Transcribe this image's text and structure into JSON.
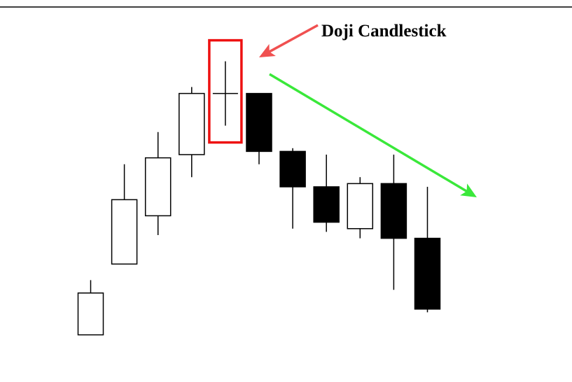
{
  "chart_data": {
    "type": "candlestick",
    "title": "",
    "xlabel": "",
    "ylabel": "",
    "grid": false,
    "ylim": [
      0,
      100
    ],
    "candles": [
      {
        "open": 9,
        "close": 22,
        "high": 26,
        "low": 9,
        "direction": "up"
      },
      {
        "open": 31,
        "close": 51,
        "high": 62,
        "low": 31,
        "direction": "up"
      },
      {
        "open": 46,
        "close": 64,
        "high": 72,
        "low": 40,
        "direction": "up"
      },
      {
        "open": 65,
        "close": 84,
        "high": 86,
        "low": 58,
        "direction": "up"
      },
      {
        "open": 84,
        "close": 84,
        "high": 94,
        "low": 74,
        "direction": "doji"
      },
      {
        "open": 84,
        "close": 66,
        "high": 84,
        "low": 62,
        "direction": "down"
      },
      {
        "open": 66,
        "close": 55,
        "high": 67,
        "low": 42,
        "direction": "down"
      },
      {
        "open": 55,
        "close": 44,
        "high": 65,
        "low": 41,
        "direction": "down"
      },
      {
        "open": 42,
        "close": 56,
        "high": 58,
        "low": 39,
        "direction": "up"
      },
      {
        "open": 56,
        "close": 39,
        "high": 65,
        "low": 23,
        "direction": "down"
      },
      {
        "open": 39,
        "close": 17,
        "high": 55,
        "low": 16,
        "direction": "down"
      }
    ],
    "annotations": [
      {
        "text": "Doji Candlestick",
        "color": "#f05050",
        "target_index": 4
      },
      {
        "text": "",
        "color": "#3ae83a",
        "trend": "down"
      }
    ],
    "highlight": {
      "index": 4,
      "color": "#ee1111"
    },
    "colors": {
      "up_fill": "#ffffff",
      "down_fill": "#000000",
      "stroke": "#000000"
    }
  }
}
